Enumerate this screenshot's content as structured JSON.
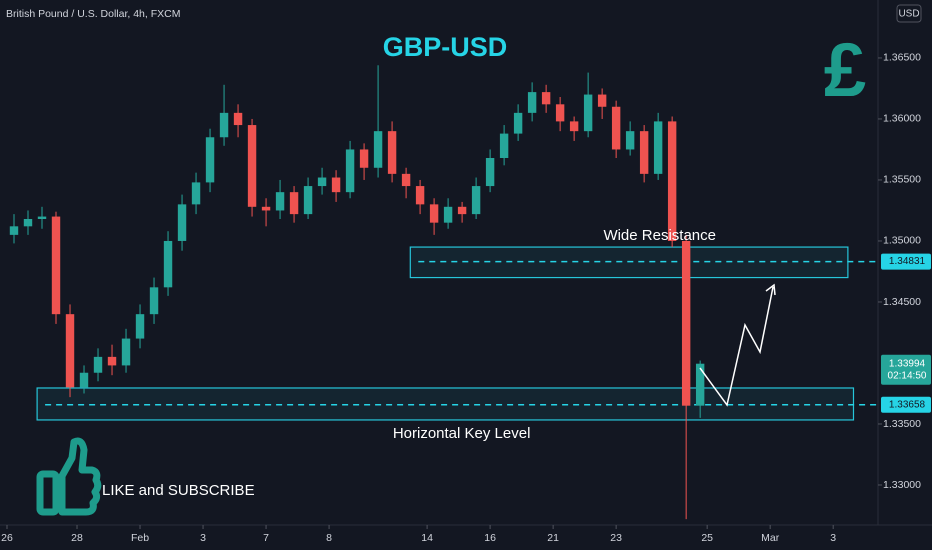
{
  "header": "British Pound / U.S. Dollar, 4h, FXCM",
  "currency": "USD",
  "chart_data": {
    "type": "candlestick",
    "title": "GBP-USD",
    "x": [
      1,
      3,
      5,
      7,
      9,
      11,
      13,
      15,
      17,
      19,
      21,
      23,
      25,
      27,
      29,
      31,
      33,
      35,
      37,
      39,
      41,
      43,
      45,
      47,
      49,
      51,
      53,
      55,
      57,
      59,
      61,
      63,
      65,
      67,
      69,
      71,
      73,
      75,
      77,
      79,
      81,
      83,
      85,
      87,
      89,
      91,
      93,
      95,
      97,
      99
    ],
    "open": [
      1.3505,
      1.3512,
      1.3518,
      1.352,
      1.344,
      1.338,
      1.3392,
      1.3405,
      1.3398,
      1.342,
      1.344,
      1.3462,
      1.35,
      1.353,
      1.3548,
      1.3585,
      1.3605,
      1.3595,
      1.3528,
      1.3525,
      1.354,
      1.3522,
      1.3545,
      1.3552,
      1.354,
      1.3575,
      1.356,
      1.359,
      1.3555,
      1.3545,
      1.353,
      1.3515,
      1.3528,
      1.3522,
      1.3545,
      1.3568,
      1.3588,
      1.3605,
      1.3622,
      1.3612,
      1.3598,
      1.359,
      1.362,
      1.361,
      1.3575,
      1.359,
      1.3555,
      1.3598,
      1.35,
      1.3365
    ],
    "high": [
      1.3522,
      1.3525,
      1.3528,
      1.3524,
      1.3448,
      1.3398,
      1.3412,
      1.3415,
      1.3428,
      1.3448,
      1.347,
      1.3508,
      1.3538,
      1.3556,
      1.3592,
      1.3628,
      1.3612,
      1.36,
      1.3535,
      1.355,
      1.3545,
      1.3552,
      1.356,
      1.3558,
      1.3582,
      1.358,
      1.3644,
      1.3598,
      1.356,
      1.355,
      1.3535,
      1.3535,
      1.3532,
      1.3552,
      1.3575,
      1.3595,
      1.3612,
      1.363,
      1.3628,
      1.3618,
      1.3602,
      1.3638,
      1.3625,
      1.3615,
      1.3598,
      1.3595,
      1.3605,
      1.3602,
      1.3505,
      1.3402
    ],
    "low": [
      1.3498,
      1.3505,
      1.351,
      1.3432,
      1.3372,
      1.3375,
      1.3385,
      1.339,
      1.3392,
      1.3412,
      1.3432,
      1.3455,
      1.3492,
      1.3522,
      1.354,
      1.3578,
      1.3585,
      1.352,
      1.3512,
      1.3518,
      1.3515,
      1.3518,
      1.3538,
      1.3532,
      1.3535,
      1.355,
      1.3552,
      1.3548,
      1.3535,
      1.3522,
      1.3505,
      1.351,
      1.3515,
      1.3518,
      1.354,
      1.3562,
      1.3582,
      1.3598,
      1.3605,
      1.359,
      1.3582,
      1.3585,
      1.36,
      1.3568,
      1.357,
      1.3548,
      1.355,
      1.3495,
      1.3272,
      1.3355
    ],
    "close": [
      1.3512,
      1.3518,
      1.352,
      1.344,
      1.338,
      1.3392,
      1.3405,
      1.3398,
      1.342,
      1.344,
      1.3462,
      1.35,
      1.353,
      1.3548,
      1.3585,
      1.3605,
      1.3595,
      1.3528,
      1.3525,
      1.354,
      1.3522,
      1.3545,
      1.3552,
      1.354,
      1.3575,
      1.356,
      1.359,
      1.3555,
      1.3545,
      1.353,
      1.3515,
      1.3528,
      1.3522,
      1.3545,
      1.3568,
      1.3588,
      1.3605,
      1.3622,
      1.3612,
      1.3598,
      1.359,
      1.362,
      1.361,
      1.3575,
      1.359,
      1.3555,
      1.3598,
      1.35,
      1.3365,
      1.33994
    ],
    "up_color": "#26a69a",
    "down_color": "#ef5350",
    "xlim": [
      -1,
      124.4
    ],
    "xticks": [
      {
        "value": 0,
        "label": "26"
      },
      {
        "value": 10,
        "label": "28"
      },
      {
        "value": 19,
        "label": "Feb"
      },
      {
        "value": 28,
        "label": "3"
      },
      {
        "value": 37,
        "label": "7"
      },
      {
        "value": 46,
        "label": "8"
      },
      {
        "value": 60,
        "label": "14"
      },
      {
        "value": 69,
        "label": "16"
      },
      {
        "value": 78,
        "label": "21"
      },
      {
        "value": 87,
        "label": "23"
      },
      {
        "value": 100,
        "label": "25"
      },
      {
        "value": 109,
        "label": "Mar"
      },
      {
        "value": 118,
        "label": "3"
      }
    ],
    "ylim": [
      1.32672,
      1.36975
    ],
    "yticks": [
      {
        "value": 1.365,
        "label": "1.36500"
      },
      {
        "value": 1.36,
        "label": "1.36000"
      },
      {
        "value": 1.355,
        "label": "1.35500"
      },
      {
        "value": 1.35,
        "label": "1.35000"
      },
      {
        "value": 1.345,
        "label": "1.34500"
      },
      {
        "value": 1.335,
        "label": "1.33500"
      },
      {
        "value": 1.33,
        "label": "1.33000"
      }
    ],
    "grid": false,
    "countdown": "02:14:50",
    "price_lines": [
      1.34831,
      1.33658
    ],
    "zones": [
      {
        "label": "Wide Resistance",
        "top": 1.3495,
        "bottom": 1.347,
        "x_start": 57.6,
        "x_end": 120.1,
        "color": "#26c6da"
      },
      {
        "label": "Horizontal Key Level",
        "top": 1.33795,
        "bottom": 1.33533,
        "x_start": 4.3,
        "x_end": 120.9,
        "color": "#26c6da"
      }
    ],
    "annotations": {
      "logo": "£",
      "cta": "LIKE and SUBSCRIBE"
    }
  }
}
